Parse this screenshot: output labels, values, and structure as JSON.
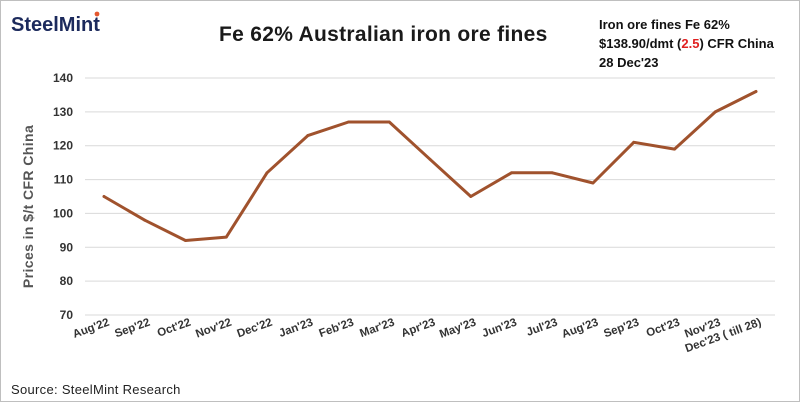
{
  "logo": {
    "text": "SteelMint"
  },
  "header": {
    "title": "Fe 62% Australian  iron ore fines",
    "price_line1": "Iron ore fines Fe 62%",
    "price_prefix": "$138.90/dmt (",
    "price_change": "2.5",
    "price_suffix": ")  CFR China",
    "price_date": "28 Dec'23"
  },
  "footer": {
    "source": "Source:  SteelMint Research"
  },
  "colors": {
    "line": "#a0522d",
    "grid": "#d9d9d9",
    "change": "#e02020"
  },
  "chart_data": {
    "type": "line",
    "title": "Fe 62% Australian  iron ore fines",
    "xlabel": "",
    "ylabel": "Prices in $/t CFR China",
    "categories": [
      "Aug'22",
      "Sep'22",
      "Oct'22",
      "Nov'22",
      "Dec'22",
      "Jan'23",
      "Feb'23",
      "Mar'23",
      "Apr'23",
      "May'23",
      "Jun'23",
      "Jul'23",
      "Aug'23",
      "Sep'23",
      "Oct'23",
      "Nov'23",
      "Dec'23 ( till 28)"
    ],
    "series": [
      {
        "values": [
          105,
          98,
          92,
          93,
          112,
          123,
          127,
          127,
          116,
          105,
          112,
          112,
          109,
          121,
          119,
          130,
          136
        ]
      }
    ],
    "ylim": [
      70,
      140
    ],
    "yticks": [
      70,
      80,
      90,
      100,
      110,
      120,
      130,
      140
    ],
    "grid": true
  }
}
